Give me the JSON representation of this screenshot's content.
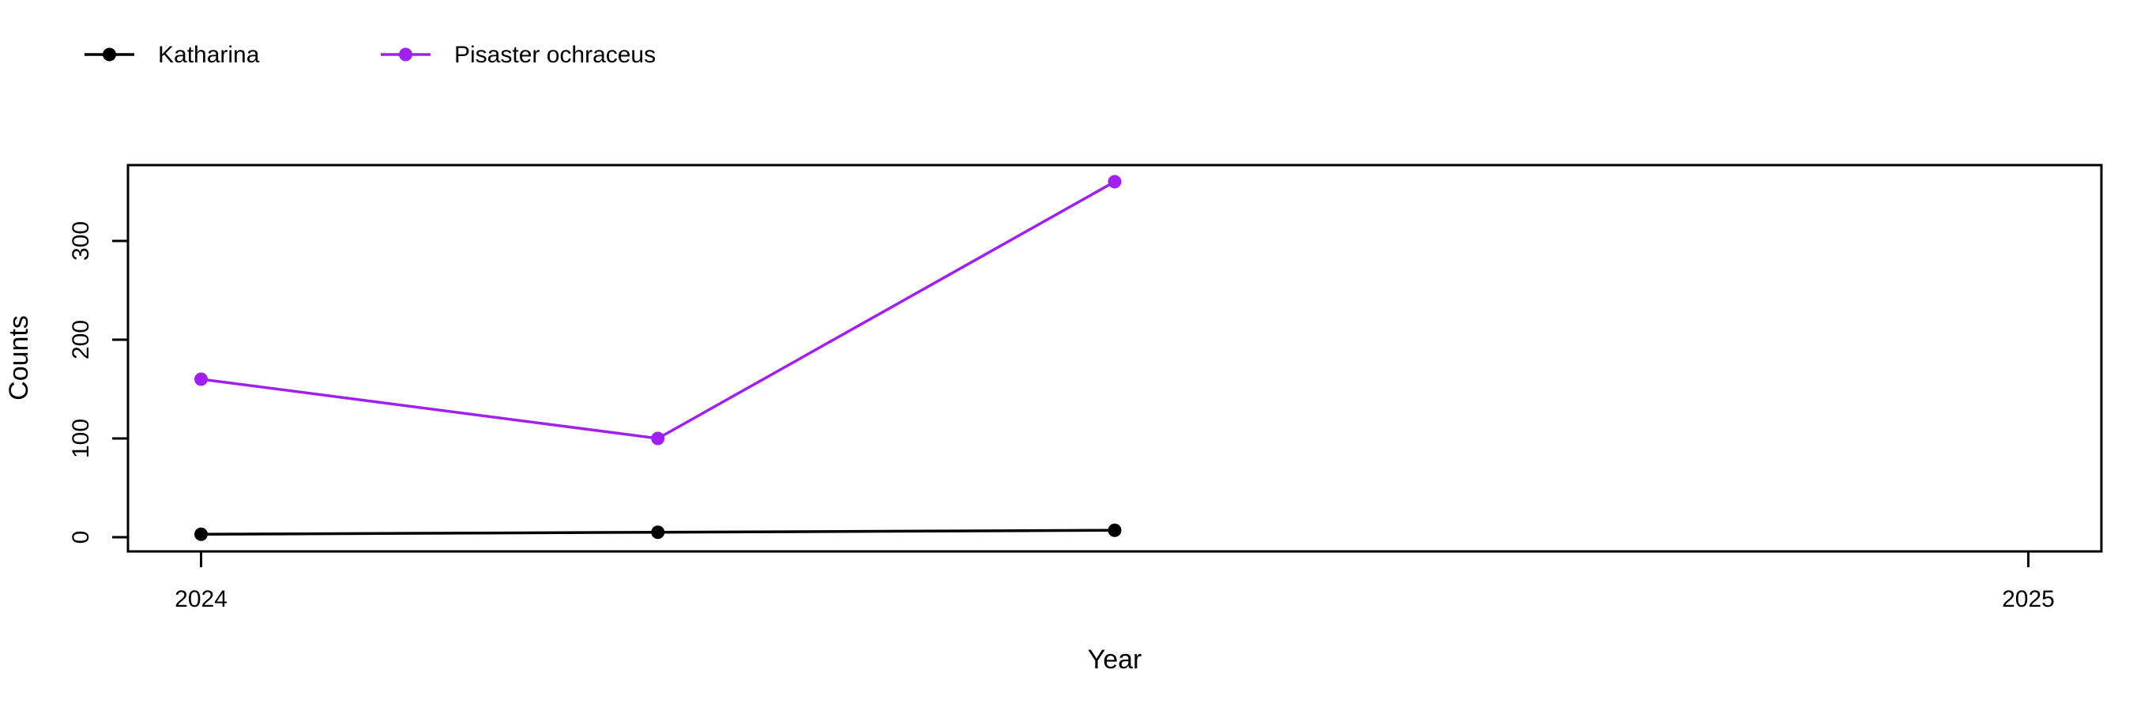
{
  "page": {
    "background": "#ffffff"
  },
  "chart_data": {
    "type": "line",
    "title": "",
    "xlabel": "Year",
    "ylabel": "Counts",
    "x": [
      2024.0,
      2024.25,
      2024.5
    ],
    "series": [
      {
        "name": "Katharina",
        "color": "#000000",
        "values": [
          3,
          5,
          7
        ]
      },
      {
        "name": "Pisaster ochraceus",
        "color": "#A020F0",
        "values": [
          160,
          100,
          360
        ]
      }
    ],
    "xticks": [
      2024,
      2025
    ],
    "yticks": [
      0,
      100,
      200,
      300
    ],
    "xlim": [
      2023.96,
      2025.04
    ],
    "ylim": [
      -14.4,
      376.8
    ],
    "grid": false,
    "legend_position": "top-left",
    "marker": "filled-circle",
    "axis_color": "#000000",
    "text_color": "#000000"
  }
}
